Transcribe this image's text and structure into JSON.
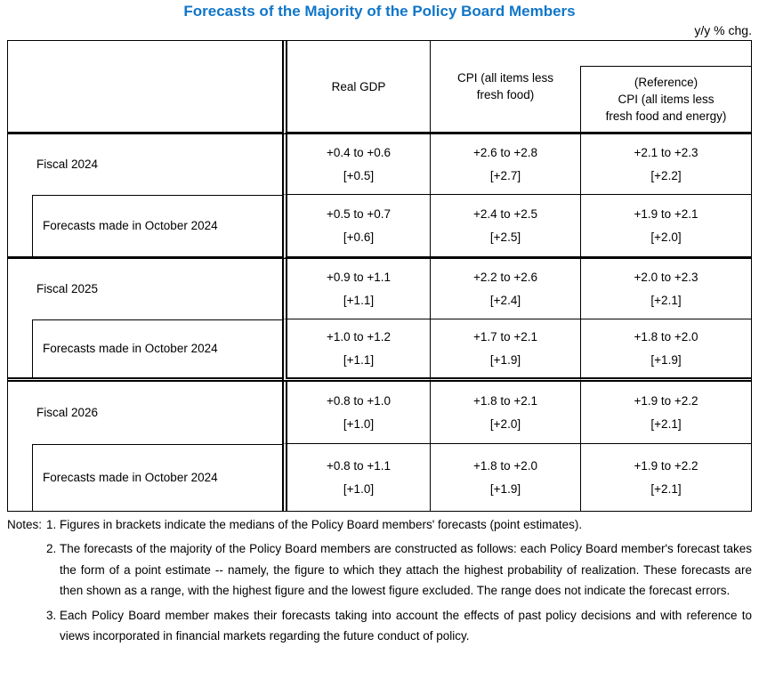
{
  "page": {
    "title": "Forecasts of the Majority of the Policy Board Members",
    "title_color": "#1076c8",
    "unit_label": "y/y % chg."
  },
  "table": {
    "header": {
      "real_gdp": "Real GDP",
      "cpi_lines": [
        "CPI (all items less",
        "fresh food)"
      ],
      "ref_lines": [
        "(Reference)",
        "CPI (all items less",
        "fresh food and energy)"
      ]
    },
    "rows": [
      {
        "label": "Fiscal 2024",
        "type": "fiscal",
        "gdp_range": "+0.4 to +0.6",
        "gdp_median": "[+0.5]",
        "cpi_range": "+2.6 to +2.8",
        "cpi_median": "[+2.7]",
        "ref_range": "+2.1 to +2.3",
        "ref_median": "[+2.2]"
      },
      {
        "label": "Forecasts made in October 2024",
        "type": "october",
        "gdp_range": "+0.5 to +0.7",
        "gdp_median": "[+0.6]",
        "cpi_range": "+2.4 to +2.5",
        "cpi_median": "[+2.5]",
        "ref_range": "+1.9 to +2.1",
        "ref_median": "[+2.0]"
      },
      {
        "label": "Fiscal 2025",
        "type": "fiscal",
        "gdp_range": "+0.9 to +1.1",
        "gdp_median": "[+1.1]",
        "cpi_range": "+2.2 to +2.6",
        "cpi_median": "[+2.4]",
        "ref_range": "+2.0 to +2.3",
        "ref_median": "[+2.1]"
      },
      {
        "label": "Forecasts made in October 2024",
        "type": "october",
        "gdp_range": "+1.0 to +1.2",
        "gdp_median": "[+1.1]",
        "cpi_range": "+1.7 to +2.1",
        "cpi_median": "[+1.9]",
        "ref_range": "+1.8 to +2.0",
        "ref_median": "[+1.9]"
      },
      {
        "label": "Fiscal 2026",
        "type": "fiscal",
        "gdp_range": "+0.8 to +1.0",
        "gdp_median": "[+1.0]",
        "cpi_range": "+1.8 to +2.1",
        "cpi_median": "[+2.0]",
        "ref_range": "+1.9 to +2.2",
        "ref_median": "[+2.1]"
      },
      {
        "label": "Forecasts made in October 2024",
        "type": "october",
        "gdp_range": "+0.8 to +1.1",
        "gdp_median": "[+1.0]",
        "cpi_range": "+1.8 to +2.0",
        "cpi_median": "[+1.9]",
        "ref_range": "+1.9 to +2.2",
        "ref_median": "[+2.1]"
      }
    ]
  },
  "notes": {
    "label": "Notes:",
    "items": [
      {
        "num": "1.",
        "text": "Figures in brackets indicate the medians of the Policy Board members' forecasts (point estimates)."
      },
      {
        "num": "2.",
        "text": "The forecasts of the majority of the Policy Board members are constructed as follows: each Policy Board member's forecast takes the form of a point estimate -- namely, the figure to which they attach the highest probability of realization. These forecasts are then shown as a range, with the highest figure and the lowest figure excluded. The range does not indicate the forecast errors."
      },
      {
        "num": "3.",
        "text": "Each Policy Board member makes their forecasts taking into account the effects of past policy decisions and with reference to views incorporated in financial markets regarding the future conduct of policy."
      }
    ]
  }
}
